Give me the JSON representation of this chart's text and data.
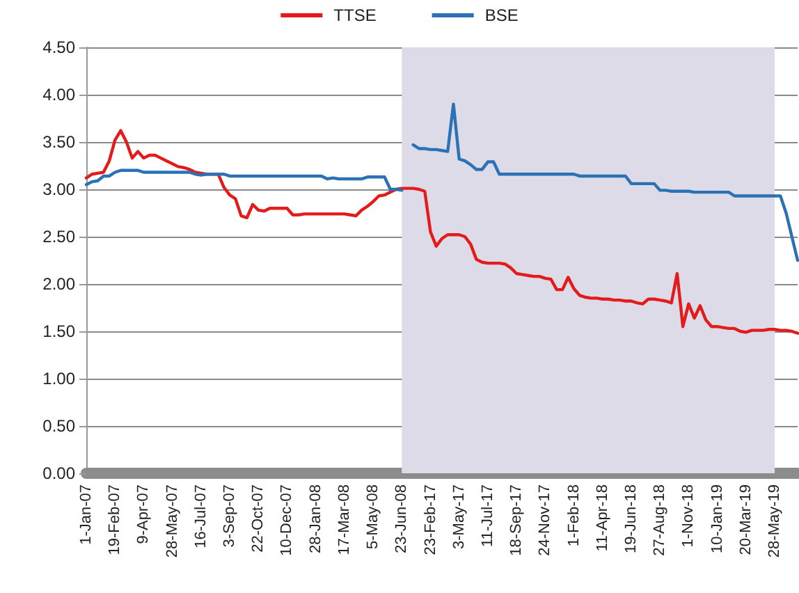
{
  "chart_data": {
    "type": "line",
    "categories": [
      "1-Jan-07",
      null,
      null,
      null,
      null,
      "19-Feb-07",
      null,
      null,
      null,
      null,
      "9-Apr-07",
      null,
      null,
      null,
      null,
      "28-May-07",
      null,
      null,
      null,
      null,
      "16-Jul-07",
      null,
      null,
      null,
      null,
      "3-Sep-07",
      null,
      null,
      null,
      null,
      "22-Oct-07",
      null,
      null,
      null,
      null,
      "10-Dec-07",
      null,
      null,
      null,
      null,
      "28-Jan-08",
      null,
      null,
      null,
      null,
      "17-Mar-08",
      null,
      null,
      null,
      null,
      "5-May-08",
      null,
      null,
      null,
      null,
      "23-Jun-08",
      null,
      null,
      null,
      null,
      "23-Feb-17",
      null,
      null,
      null,
      null,
      "3-May-17",
      null,
      null,
      null,
      null,
      "11-Jul-17",
      null,
      null,
      null,
      null,
      "18-Sep-17",
      null,
      null,
      null,
      null,
      "24-Nov-17",
      null,
      null,
      null,
      null,
      "1-Feb-18",
      null,
      null,
      null,
      null,
      "11-Apr-18",
      null,
      null,
      null,
      null,
      "19-Jun-18",
      null,
      null,
      null,
      null,
      "27-Aug-18",
      null,
      null,
      null,
      null,
      "1-Nov-18",
      null,
      null,
      null,
      null,
      "10-Jan-19",
      null,
      null,
      null,
      null,
      "20-Mar-19",
      null,
      null,
      null,
      null,
      "28-May-19",
      null,
      null,
      null,
      null
    ],
    "series": [
      {
        "name": "TTSE",
        "color": "#e31b1b",
        "values": [
          3.12,
          3.16,
          3.17,
          3.18,
          3.3,
          3.52,
          3.62,
          3.5,
          3.33,
          3.4,
          3.33,
          3.36,
          3.36,
          3.33,
          3.3,
          3.27,
          3.24,
          3.23,
          3.21,
          3.18,
          3.17,
          3.16,
          3.16,
          3.16,
          3.02,
          2.94,
          2.9,
          2.72,
          2.7,
          2.84,
          2.78,
          2.77,
          2.8,
          2.8,
          2.8,
          2.8,
          2.73,
          2.73,
          2.74,
          2.74,
          2.74,
          2.74,
          2.74,
          2.74,
          2.74,
          2.74,
          2.73,
          2.72,
          2.78,
          2.82,
          2.87,
          2.93,
          2.94,
          2.97,
          3.0,
          3.01,
          3.01,
          3.01,
          3.0,
          2.98,
          2.55,
          2.4,
          2.48,
          2.52,
          2.52,
          2.52,
          2.5,
          2.42,
          2.26,
          2.23,
          2.22,
          2.22,
          2.22,
          2.21,
          2.17,
          2.11,
          2.1,
          2.09,
          2.08,
          2.08,
          2.06,
          2.05,
          1.94,
          1.94,
          2.07,
          1.95,
          1.88,
          1.86,
          1.85,
          1.85,
          1.84,
          1.84,
          1.83,
          1.83,
          1.82,
          1.82,
          1.8,
          1.79,
          1.84,
          1.84,
          1.83,
          1.82,
          1.8,
          2.11,
          1.55,
          1.79,
          1.64,
          1.77,
          1.62,
          1.55,
          1.55,
          1.54,
          1.53,
          1.53,
          1.5,
          1.49,
          1.51,
          1.51,
          1.51,
          1.52,
          1.52,
          1.51,
          1.51,
          1.5,
          1.48
        ]
      },
      {
        "name": "BSE",
        "color": "#2a72b5",
        "values": [
          3.05,
          3.08,
          3.09,
          3.14,
          3.14,
          3.18,
          3.2,
          3.2,
          3.2,
          3.2,
          3.18,
          3.18,
          3.18,
          3.18,
          3.18,
          3.18,
          3.18,
          3.18,
          3.18,
          3.16,
          3.15,
          3.16,
          3.16,
          3.16,
          3.16,
          3.14,
          3.14,
          3.14,
          3.14,
          3.14,
          3.14,
          3.14,
          3.14,
          3.14,
          3.14,
          3.14,
          3.14,
          3.14,
          3.14,
          3.14,
          3.14,
          3.14,
          3.11,
          3.12,
          3.11,
          3.11,
          3.11,
          3.11,
          3.11,
          3.13,
          3.13,
          3.13,
          3.13,
          3.0,
          3.0,
          2.99,
          null,
          3.47,
          3.43,
          3.43,
          3.42,
          3.42,
          3.41,
          3.4,
          3.9,
          3.32,
          3.3,
          3.26,
          3.21,
          3.21,
          3.29,
          3.29,
          3.16,
          3.16,
          3.16,
          3.16,
          3.16,
          3.16,
          3.16,
          3.16,
          3.16,
          3.16,
          3.16,
          3.16,
          3.16,
          3.16,
          3.14,
          3.14,
          3.14,
          3.14,
          3.14,
          3.14,
          3.14,
          3.14,
          3.14,
          3.06,
          3.06,
          3.06,
          3.06,
          3.06,
          2.99,
          2.99,
          2.98,
          2.98,
          2.98,
          2.98,
          2.97,
          2.97,
          2.97,
          2.97,
          2.97,
          2.97,
          2.97,
          2.93,
          2.93,
          2.93,
          2.93,
          2.93,
          2.93,
          2.93,
          2.93,
          2.93,
          2.75,
          2.5,
          2.25
        ]
      }
    ],
    "ylim": [
      0,
      4.5
    ],
    "yticks": [
      {
        "value": 0,
        "label": "0.00"
      },
      {
        "value": 0.5,
        "label": "0.50"
      },
      {
        "value": 1,
        "label": "1.00"
      },
      {
        "value": 1.5,
        "label": "1.50"
      },
      {
        "value": 2,
        "label": "2.00"
      },
      {
        "value": 2.5,
        "label": "2.50"
      },
      {
        "value": 3,
        "label": "3.00"
      },
      {
        "value": 3.5,
        "label": "3.50"
      },
      {
        "value": 4,
        "label": "4.00"
      },
      {
        "value": 4.5,
        "label": "4.50"
      }
    ],
    "bands": [
      {
        "axis": "x",
        "from": "23-Jun-08",
        "to": "28-May-19",
        "color": "#dedbe9"
      }
    ],
    "grid": "y",
    "legend": "top",
    "marker": "none",
    "line_style": "solid"
  }
}
